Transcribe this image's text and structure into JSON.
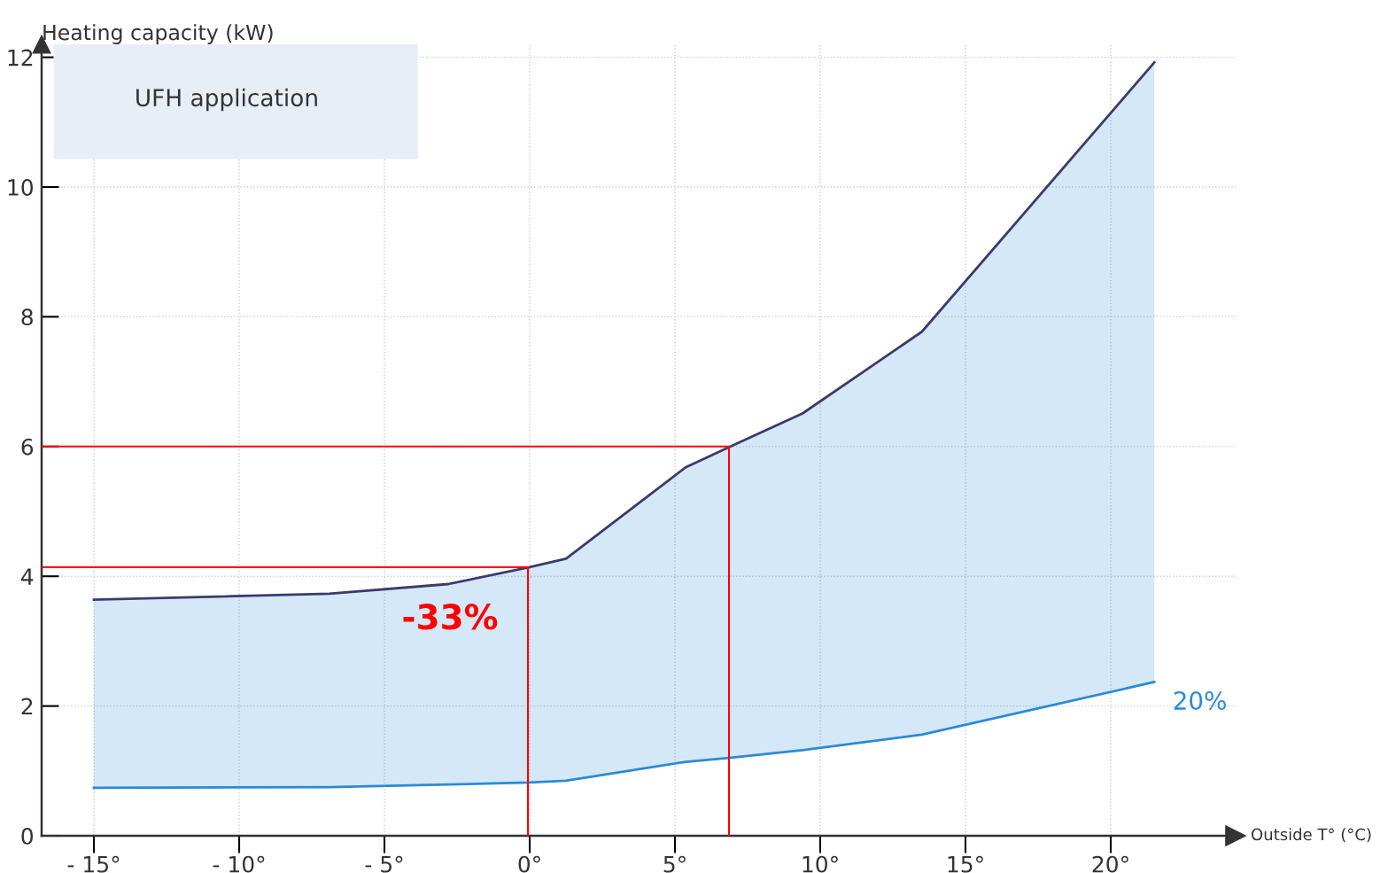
{
  "chart_data": {
    "type": "line",
    "xlabel": "Outside T° (°C)",
    "ylabel": "Heating capacity (kW)",
    "xlim": [
      -16.8,
      24.3
    ],
    "ylim": [
      0,
      12.2
    ],
    "xticks": [
      {
        "value": -15,
        "label": "- 15°"
      },
      {
        "value": -10,
        "label": "- 10°"
      },
      {
        "value": -5,
        "label": "- 5°"
      },
      {
        "value": 0,
        "label": "0°"
      },
      {
        "value": 5,
        "label": "5°"
      },
      {
        "value": 10,
        "label": "10°"
      },
      {
        "value": 15,
        "label": "15°"
      },
      {
        "value": 20,
        "label": "20°"
      }
    ],
    "yticks": [
      0,
      2,
      4,
      6,
      8,
      10,
      12
    ],
    "grid": true,
    "series": [
      {
        "color": "#3a3a6e",
        "x": [
          -15,
          -6.9,
          -2.8,
          0,
          1.25,
          5.37,
          6.86,
          9.39,
          13.5,
          21.5
        ],
        "values": [
          3.64,
          3.73,
          3.88,
          4.14,
          4.27,
          5.68,
          5.99,
          6.51,
          7.77,
          11.92
        ],
        "lower": [
          0.74,
          0.75,
          0.79,
          0.82,
          0.85,
          1.14,
          1.2,
          1.32,
          1.56,
          2.37
        ],
        "upper": [
          3.64,
          3.73,
          3.88,
          4.14,
          4.27,
          5.68,
          5.99,
          6.51,
          7.77,
          11.92
        ]
      },
      {
        "color": "#2a8ad8",
        "x": [
          -15,
          -6.9,
          -2.8,
          0,
          1.25,
          5.37,
          6.86,
          9.39,
          13.5,
          21.5
        ],
        "values": [
          0.74,
          0.75,
          0.79,
          0.82,
          0.85,
          1.14,
          1.2,
          1.32,
          1.56,
          2.37
        ]
      },
      {
        "color": "#ff0000",
        "x": [
          -16.8,
          -0.06,
          -0.06
        ],
        "values": [
          4.14,
          4.14,
          0
        ]
      },
      {
        "color": "#ff0000",
        "x": [
          -16.8,
          6.86,
          6.86
        ],
        "values": [
          6,
          6,
          0
        ]
      }
    ],
    "annotations": [
      "UFH application",
      "-33%",
      "20%"
    ]
  }
}
